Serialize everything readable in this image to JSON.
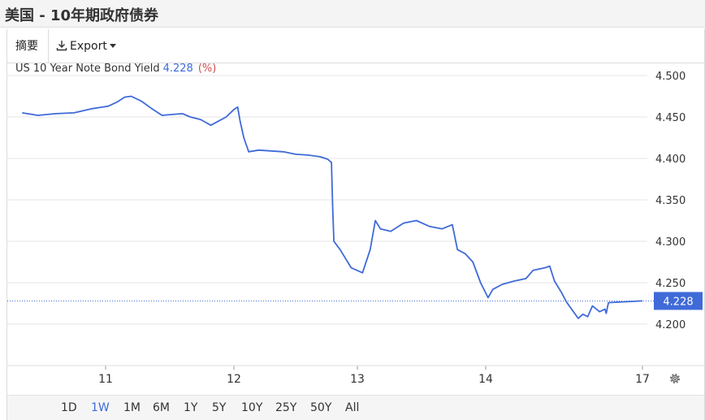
{
  "header": {
    "title": "美国 - 10年期政府债券"
  },
  "toolbar": {
    "summary_label": "摘要",
    "export_label": "Export"
  },
  "legend": {
    "series_name": "US 10 Year Note Bond Yield",
    "last_value": "4.228",
    "unit": "(%)"
  },
  "ranges": [
    {
      "label": "1D",
      "active": false
    },
    {
      "label": "1W",
      "active": true
    },
    {
      "label": "1M",
      "active": false
    },
    {
      "label": "6M",
      "active": false
    },
    {
      "label": "1Y",
      "active": false
    },
    {
      "label": "5Y",
      "active": false
    },
    {
      "label": "10Y",
      "active": false
    },
    {
      "label": "25Y",
      "active": false
    },
    {
      "label": "50Y",
      "active": false
    },
    {
      "label": "All",
      "active": false
    }
  ],
  "colors": {
    "line": "#3f6ad8",
    "grid": "#e6e6e6",
    "badge": "#3f6ad8"
  },
  "chart_data": {
    "type": "line",
    "xlabel": "",
    "ylabel": "",
    "ylim": [
      4.15,
      4.5
    ],
    "xlim": [
      10.6,
      17.15
    ],
    "y_ticks": [
      "4.500",
      "4.450",
      "4.400",
      "4.350",
      "4.300",
      "4.250",
      "4.200"
    ],
    "y_tick_values": [
      4.5,
      4.45,
      4.4,
      4.35,
      4.3,
      4.25,
      4.2
    ],
    "x_ticks": [
      "11",
      "12",
      "13",
      "14",
      "17"
    ],
    "x_tick_values": [
      11,
      12,
      13,
      14,
      17
    ],
    "grid": true,
    "last_value": 4.228,
    "series": [
      {
        "name": "US 10 Year Note Bond Yield",
        "points": [
          [
            10.63,
            4.455
          ],
          [
            10.7,
            4.452
          ],
          [
            10.78,
            4.454
          ],
          [
            10.86,
            4.455
          ],
          [
            10.94,
            4.46
          ],
          [
            11.02,
            4.463
          ],
          [
            11.09,
            4.468
          ],
          [
            11.15,
            4.474
          ],
          [
            11.2,
            4.475
          ],
          [
            11.28,
            4.469
          ],
          [
            11.36,
            4.46
          ],
          [
            11.44,
            4.452
          ],
          [
            11.52,
            4.453
          ],
          [
            11.6,
            4.454
          ],
          [
            11.66,
            4.45
          ],
          [
            11.74,
            4.447
          ],
          [
            11.82,
            4.44
          ],
          [
            11.88,
            4.445
          ],
          [
            11.94,
            4.45
          ],
          [
            12.0,
            4.459
          ],
          [
            12.03,
            4.462
          ],
          [
            12.05,
            4.445
          ],
          [
            12.08,
            4.425
          ],
          [
            12.12,
            4.408
          ],
          [
            12.2,
            4.41
          ],
          [
            12.3,
            4.409
          ],
          [
            12.4,
            4.408
          ],
          [
            12.5,
            4.405
          ],
          [
            12.6,
            4.404
          ],
          [
            12.7,
            4.402
          ],
          [
            12.76,
            4.399
          ],
          [
            12.79,
            4.395
          ],
          [
            12.8,
            4.34
          ],
          [
            12.81,
            4.3
          ],
          [
            12.86,
            4.29
          ],
          [
            12.95,
            4.268
          ],
          [
            13.04,
            4.262
          ],
          [
            13.1,
            4.29
          ],
          [
            13.14,
            4.325
          ],
          [
            13.18,
            4.315
          ],
          [
            13.26,
            4.312
          ],
          [
            13.36,
            4.322
          ],
          [
            13.46,
            4.325
          ],
          [
            13.56,
            4.318
          ],
          [
            13.66,
            4.315
          ],
          [
            13.74,
            4.32
          ],
          [
            13.78,
            4.29
          ],
          [
            13.84,
            4.285
          ],
          [
            13.9,
            4.275
          ],
          [
            13.96,
            4.25
          ],
          [
            14.02,
            4.232
          ],
          [
            14.06,
            4.242
          ],
          [
            14.14,
            4.248
          ],
          [
            14.24,
            4.252
          ],
          [
            14.34,
            4.255
          ],
          [
            14.4,
            4.265
          ],
          [
            14.5,
            4.268
          ],
          [
            14.54,
            4.27
          ],
          [
            14.58,
            4.252
          ],
          [
            14.64,
            4.238
          ],
          [
            14.68,
            4.227
          ],
          [
            14.74,
            4.215
          ],
          [
            14.78,
            4.207
          ],
          [
            14.82,
            4.212
          ],
          [
            14.86,
            4.209
          ],
          [
            14.9,
            4.222
          ],
          [
            14.96,
            4.215
          ],
          [
            15.04,
            4.218
          ],
          [
            15.1,
            4.213
          ],
          [
            15.16,
            4.22
          ],
          [
            15.22,
            4.226
          ],
          [
            17.0,
            4.228
          ]
        ]
      }
    ]
  }
}
